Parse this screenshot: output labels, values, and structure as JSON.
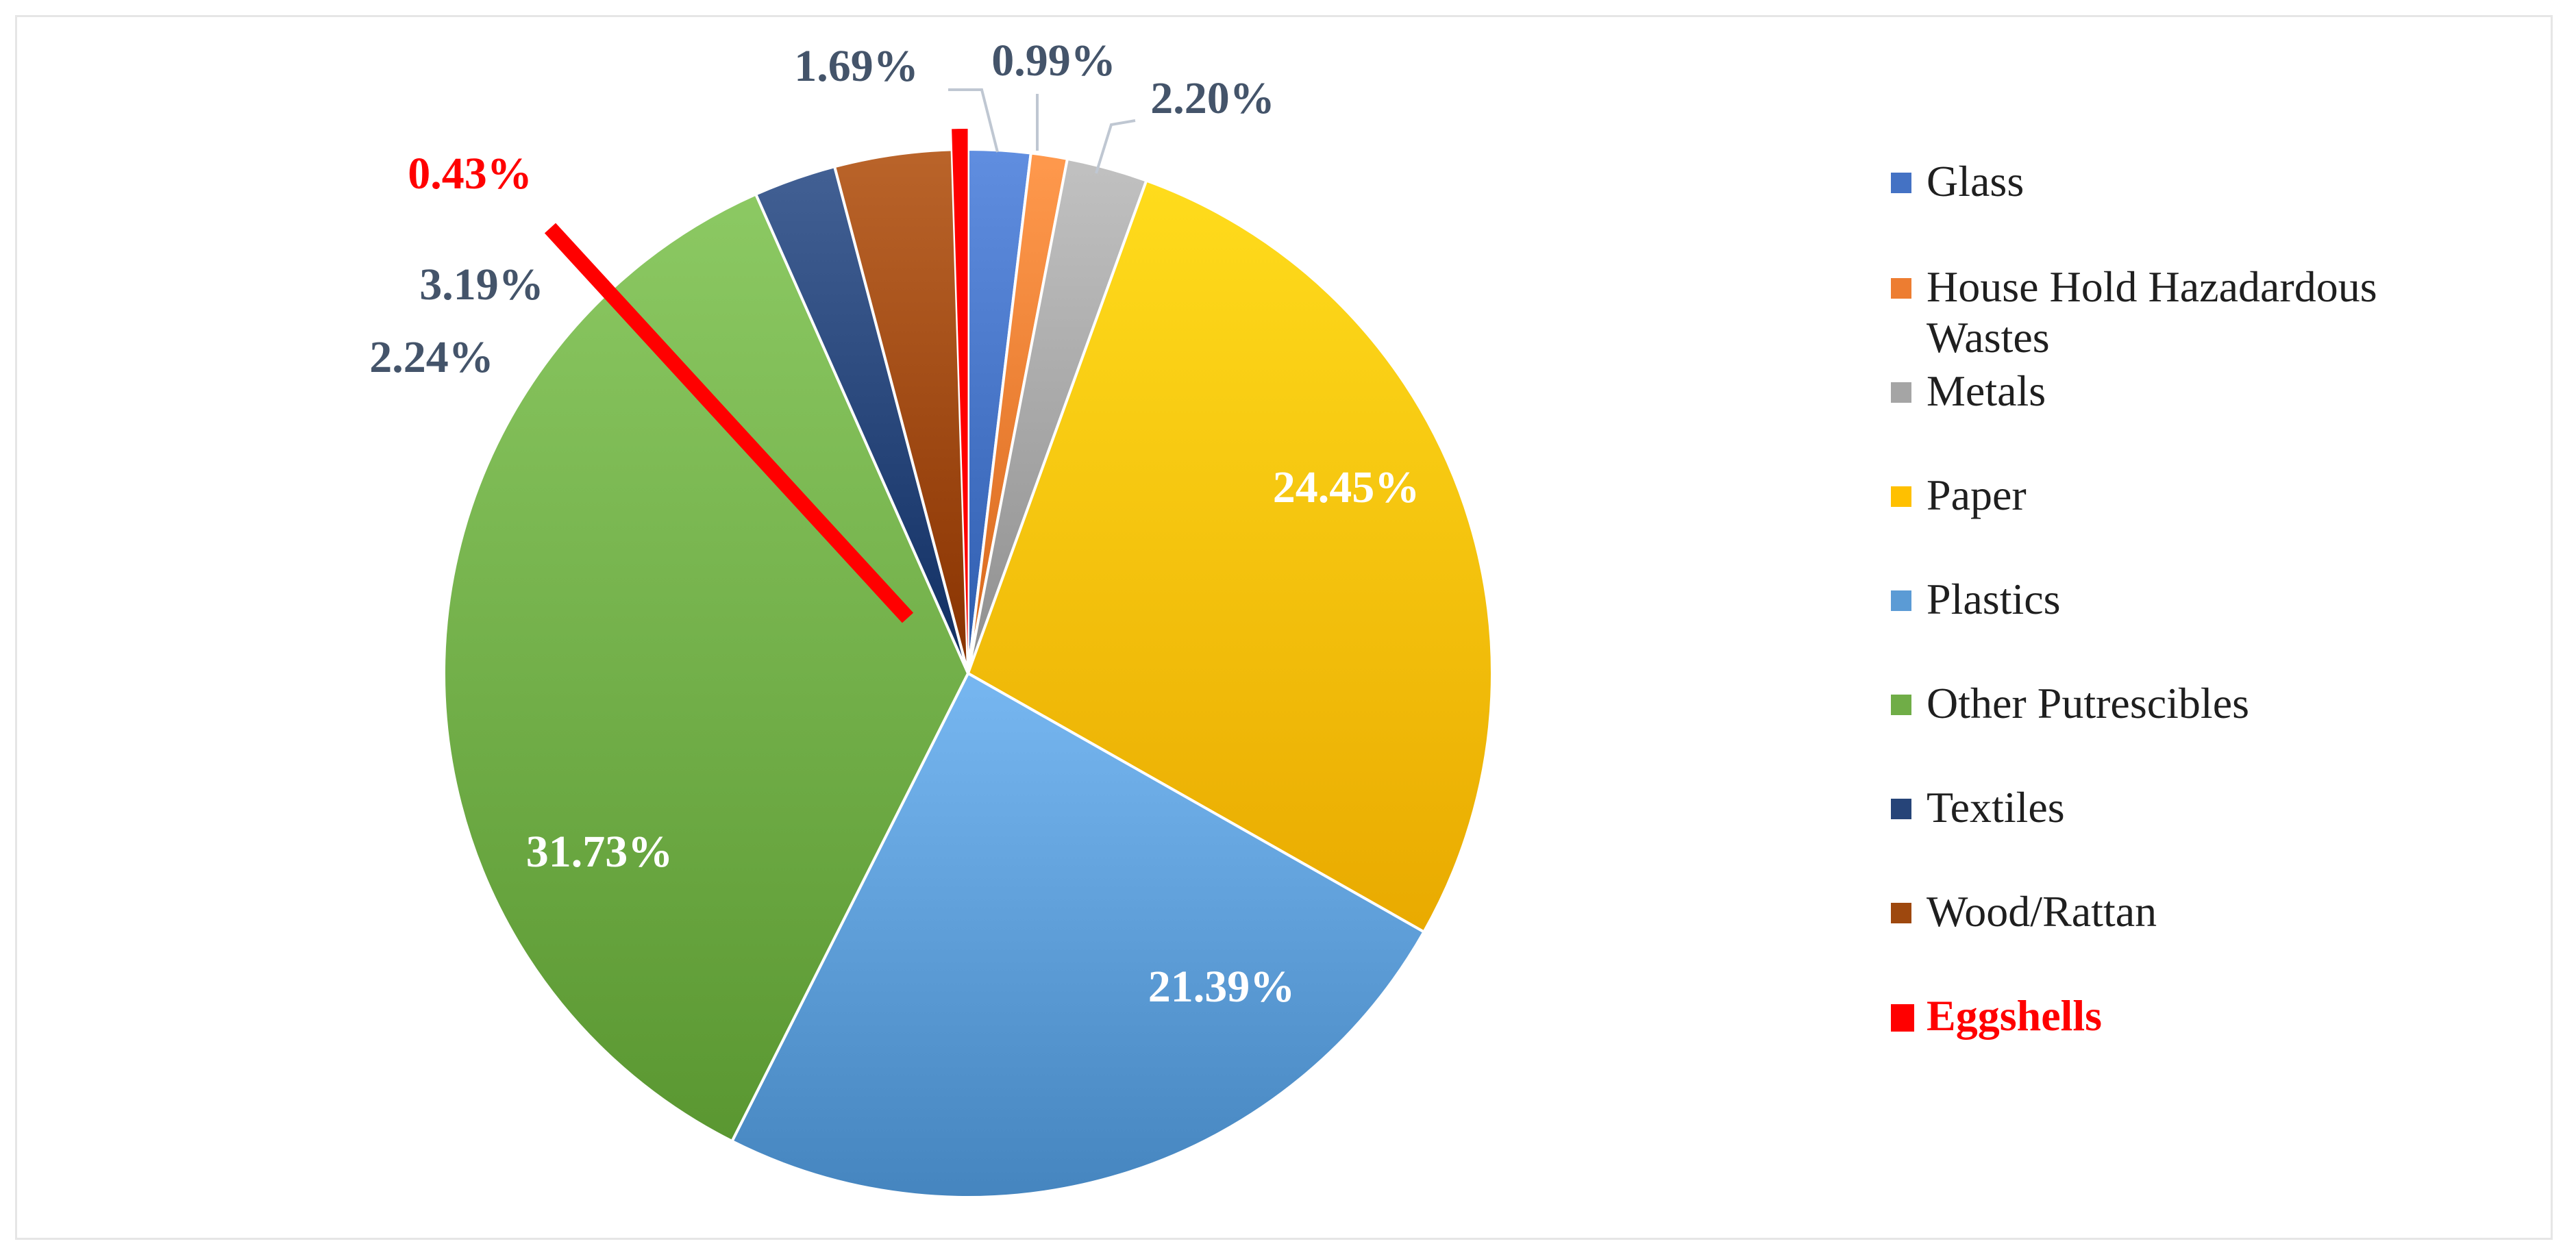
{
  "chart_data": {
    "type": "pie",
    "categories": [
      "Glass",
      "House Hold Hazadardous Wastes",
      "Metals",
      "Paper",
      "Plastics",
      "Other Putrescibles",
      "Textiles",
      "Wood/Rattan",
      "Eggshells"
    ],
    "values": [
      1.69,
      0.99,
      2.2,
      24.45,
      21.39,
      31.73,
      2.24,
      3.19,
      0.43
    ],
    "labels": [
      "1.69%",
      "0.99%",
      "2.20%",
      "24.45%",
      "21.39%",
      "31.73%",
      "2.24%",
      "3.19%",
      "0.43%"
    ],
    "colors": [
      "#4472c4",
      "#ed7d31",
      "#a5a5a5",
      "#ffc000",
      "#5b9bd5",
      "#70ad47",
      "#264478",
      "#9e480e",
      "#ff0000"
    ],
    "highlight": "Eggshells",
    "legend_position": "right"
  }
}
